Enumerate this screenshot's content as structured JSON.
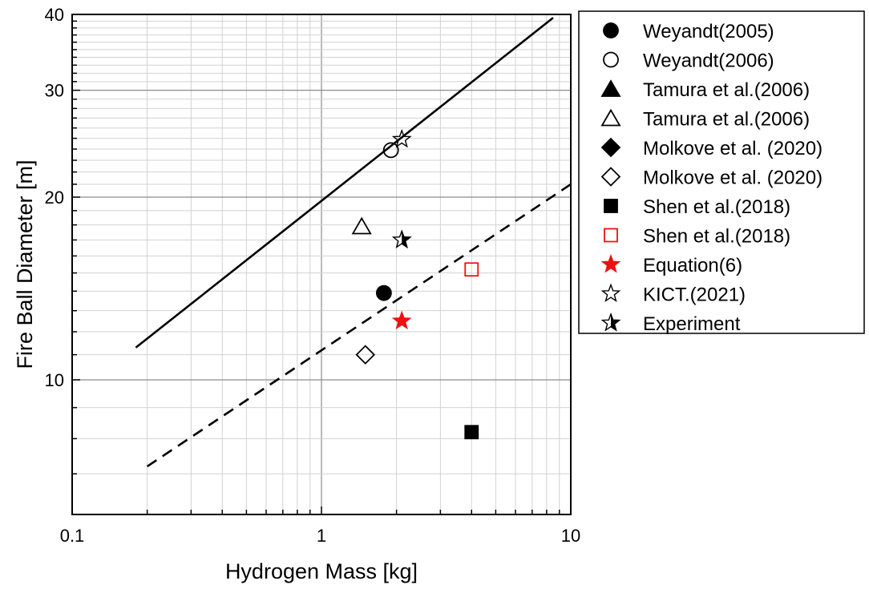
{
  "chart_data": {
    "type": "scatter",
    "xlabel": "Hydrogen Mass [kg]",
    "ylabel": "Fire Ball Diameter [m]",
    "xscale": "log",
    "yscale": "log",
    "xlim": [
      0.1,
      10
    ],
    "ylim": [
      6,
      40
    ],
    "grid": true,
    "legend_position": "outside-right",
    "x_ticks": [
      {
        "value": 0.1,
        "label": "0.1"
      },
      {
        "value": 1,
        "label": "1"
      },
      {
        "value": 10,
        "label": "10"
      }
    ],
    "y_ticks": [
      {
        "value": 10,
        "label": "10"
      },
      {
        "value": 20,
        "label": "20"
      },
      {
        "value": 30,
        "label": "30"
      },
      {
        "value": 40,
        "label": "40"
      }
    ],
    "lines": [
      {
        "style": "solid",
        "x": [
          0.18,
          8.5
        ],
        "y": [
          11.3,
          39.5
        ]
      },
      {
        "style": "dashed",
        "x": [
          0.2,
          10
        ],
        "y": [
          7.2,
          21
        ]
      }
    ],
    "series": [
      {
        "name": "Weyandt(2005)",
        "marker": "circle",
        "fill": "#000000",
        "stroke": "#000000",
        "points": [
          {
            "x": 1.78,
            "y": 13.9
          }
        ]
      },
      {
        "name": "Weyandt(2006)",
        "marker": "circle",
        "fill": "none",
        "stroke": "#000000",
        "points": [
          {
            "x": 1.9,
            "y": 23.9
          }
        ]
      },
      {
        "name": "Tamura et al.(2006)",
        "marker": "triangle",
        "fill": "#000000",
        "stroke": "#000000",
        "points": []
      },
      {
        "name": "Tamura et al.(2006)",
        "marker": "triangle",
        "fill": "none",
        "stroke": "#000000",
        "points": [
          {
            "x": 1.45,
            "y": 17.9
          }
        ]
      },
      {
        "name": "Molkove et al. (2020)",
        "marker": "diamond",
        "fill": "#000000",
        "stroke": "#000000",
        "points": []
      },
      {
        "name": "Molkove et al. (2020)",
        "marker": "diamond",
        "fill": "none",
        "stroke": "#000000",
        "points": [
          {
            "x": 1.5,
            "y": 11.0
          }
        ]
      },
      {
        "name": "Shen et al.(2018)",
        "marker": "square",
        "fill": "#000000",
        "stroke": "#000000",
        "points": [
          {
            "x": 4.0,
            "y": 8.2
          }
        ]
      },
      {
        "name": "Shen et al.(2018)",
        "marker": "square",
        "fill": "none",
        "stroke": "#ee1111",
        "points": [
          {
            "x": 4.0,
            "y": 15.2
          }
        ]
      },
      {
        "name": "Equation(6)",
        "marker": "star",
        "fill": "#ee1111",
        "stroke": "#ee1111",
        "points": [
          {
            "x": 2.1,
            "y": 12.5
          }
        ]
      },
      {
        "name": "KICT.(2021)",
        "marker": "star",
        "fill": "none",
        "stroke": "#000000",
        "points": [
          {
            "x": 2.1,
            "y": 24.9
          }
        ]
      },
      {
        "name": "Experiment",
        "marker": "halfstar",
        "fill": "#000000",
        "stroke": "#000000",
        "points": [
          {
            "x": 2.1,
            "y": 17.0
          }
        ]
      }
    ]
  }
}
